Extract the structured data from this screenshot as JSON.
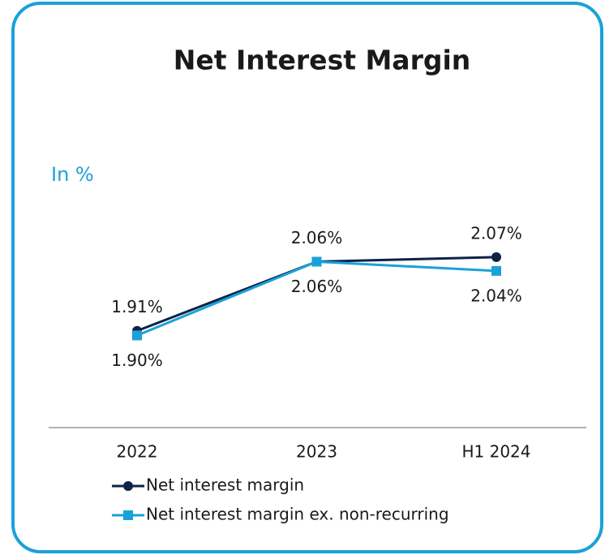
{
  "chart_data": {
    "type": "line",
    "title": "Net Interest Margin",
    "subtitle": "In %",
    "categories": [
      "2022",
      "2023",
      "H1 2024"
    ],
    "series": [
      {
        "name": "Net interest margin",
        "color": "#0d2346",
        "marker": "circle",
        "values": [
          1.91,
          2.06,
          2.07
        ],
        "value_labels": [
          "1.91%",
          "2.06%",
          "2.07%"
        ]
      },
      {
        "name": "Net interest margin ex. non-recurring",
        "color": "#1ba1d9",
        "marker": "square",
        "values": [
          1.9,
          2.06,
          2.04
        ],
        "value_labels": [
          "1.90%",
          "2.06%",
          "2.04%"
        ]
      }
    ],
    "ylim": [
      1.7,
      2.2
    ],
    "grid": false
  }
}
